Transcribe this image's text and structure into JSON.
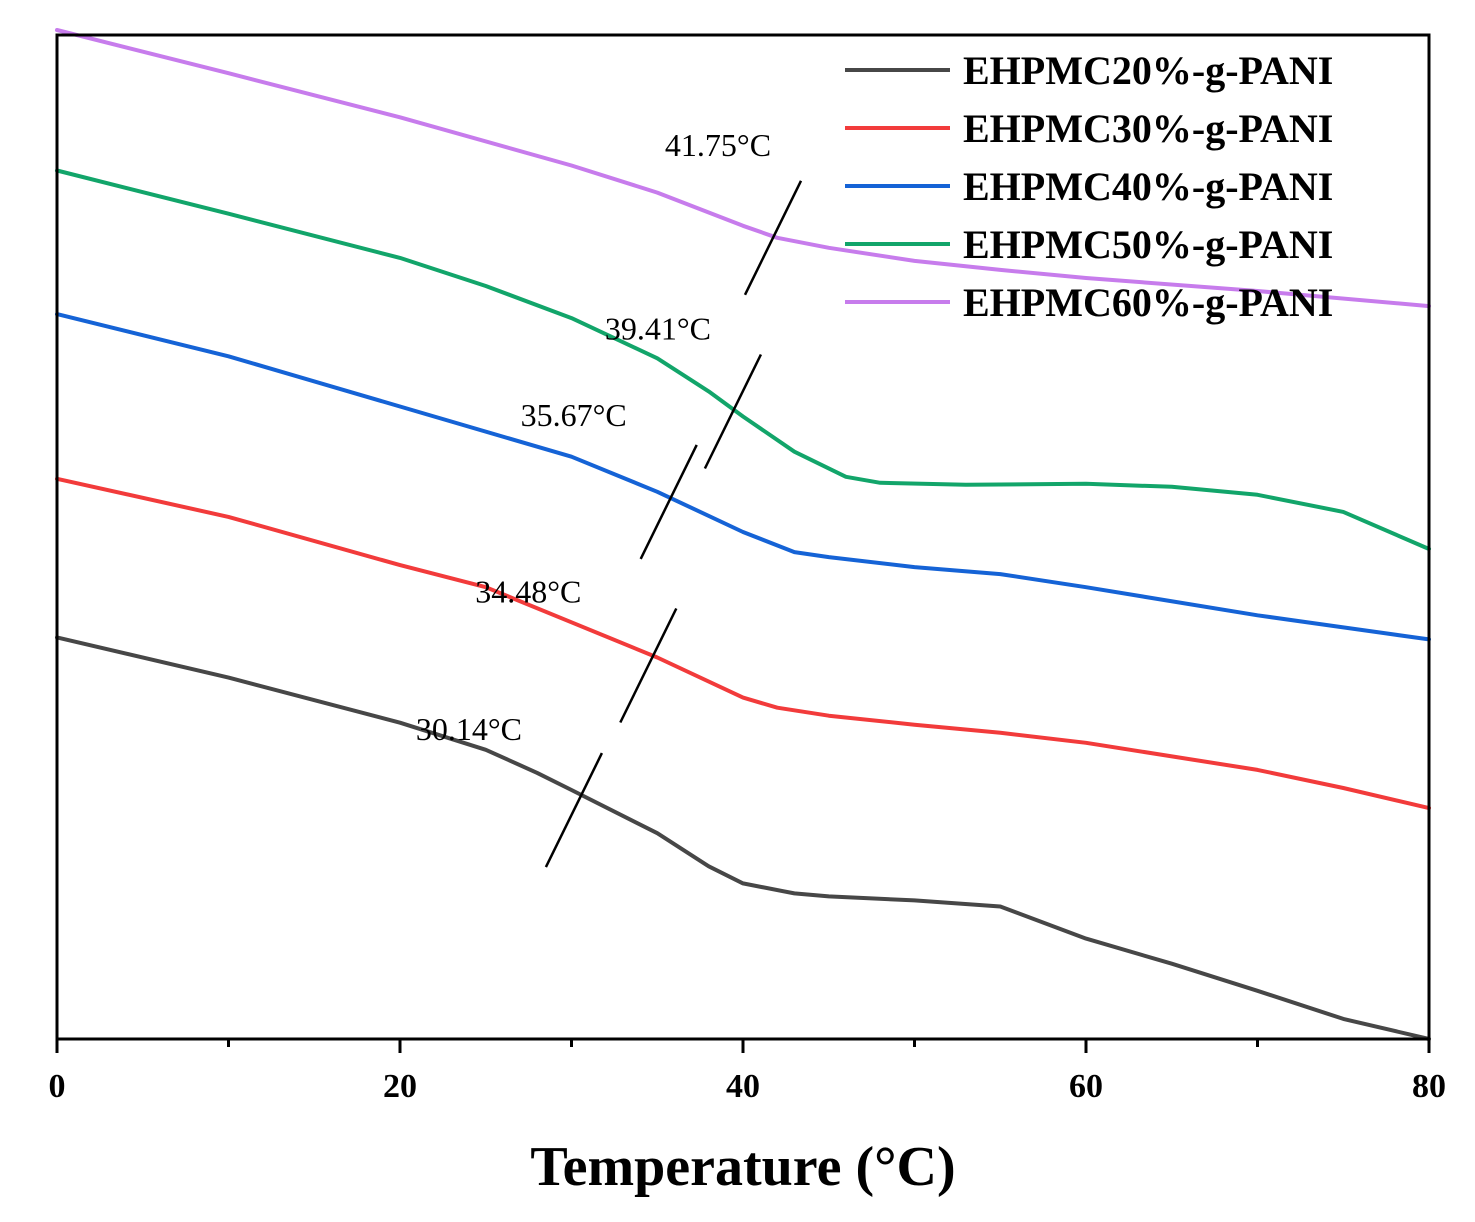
{
  "chart_data": {
    "type": "line",
    "title": "",
    "xlabel": "Temperature (°C)",
    "ylabel": "",
    "xlim": [
      0,
      80
    ],
    "ylim": [
      0,
      10
    ],
    "x_ticks": [
      "0",
      "20",
      "40",
      "60",
      "80"
    ],
    "legend_position": "top-right",
    "series": [
      {
        "name": "EHPMC60%-g-PANI",
        "color": "#c77cec",
        "points": [
          [
            0,
            10.05
          ],
          [
            10,
            9.62
          ],
          [
            20,
            9.18
          ],
          [
            30,
            8.7
          ],
          [
            35,
            8.43
          ],
          [
            40,
            8.1
          ],
          [
            42,
            7.98
          ],
          [
            45,
            7.88
          ],
          [
            50,
            7.75
          ],
          [
            55,
            7.66
          ],
          [
            60,
            7.58
          ],
          [
            70,
            7.45
          ],
          [
            80,
            7.3
          ]
        ]
      },
      {
        "name": "EHPMC50%-g-PANI",
        "color": "#12a56a",
        "points": [
          [
            0,
            8.65
          ],
          [
            10,
            8.22
          ],
          [
            20,
            7.78
          ],
          [
            25,
            7.5
          ],
          [
            30,
            7.18
          ],
          [
            35,
            6.78
          ],
          [
            38,
            6.45
          ],
          [
            40,
            6.2
          ],
          [
            43,
            5.85
          ],
          [
            46,
            5.6
          ],
          [
            48,
            5.54
          ],
          [
            53,
            5.52
          ],
          [
            60,
            5.53
          ],
          [
            65,
            5.5
          ],
          [
            70,
            5.42
          ],
          [
            75,
            5.25
          ],
          [
            80,
            4.88
          ]
        ]
      },
      {
        "name": "EHPMC40%-g-PANI",
        "color": "#1563d6",
        "points": [
          [
            0,
            7.22
          ],
          [
            10,
            6.8
          ],
          [
            20,
            6.3
          ],
          [
            30,
            5.8
          ],
          [
            35,
            5.45
          ],
          [
            40,
            5.05
          ],
          [
            43,
            4.85
          ],
          [
            45,
            4.8
          ],
          [
            50,
            4.7
          ],
          [
            55,
            4.63
          ],
          [
            60,
            4.5
          ],
          [
            70,
            4.22
          ],
          [
            75,
            4.1
          ],
          [
            80,
            3.98
          ]
        ]
      },
      {
        "name": "EHPMC30%-g-PANI",
        "color": "#f23b3b",
        "points": [
          [
            0,
            5.58
          ],
          [
            10,
            5.2
          ],
          [
            20,
            4.72
          ],
          [
            25,
            4.5
          ],
          [
            30,
            4.15
          ],
          [
            35,
            3.8
          ],
          [
            40,
            3.4
          ],
          [
            42,
            3.3
          ],
          [
            45,
            3.22
          ],
          [
            50,
            3.13
          ],
          [
            55,
            3.05
          ],
          [
            60,
            2.95
          ],
          [
            70,
            2.68
          ],
          [
            75,
            2.5
          ],
          [
            80,
            2.3
          ]
        ]
      },
      {
        "name": "EHPMC20%-g-PANI",
        "color": "#474747",
        "points": [
          [
            0,
            4.0
          ],
          [
            10,
            3.6
          ],
          [
            20,
            3.15
          ],
          [
            25,
            2.88
          ],
          [
            28,
            2.65
          ],
          [
            30,
            2.48
          ],
          [
            35,
            2.05
          ],
          [
            38,
            1.72
          ],
          [
            40,
            1.55
          ],
          [
            43,
            1.45
          ],
          [
            45,
            1.42
          ],
          [
            50,
            1.38
          ],
          [
            55,
            1.32
          ],
          [
            60,
            1.0
          ],
          [
            65,
            0.75
          ],
          [
            70,
            0.48
          ],
          [
            75,
            0.2
          ],
          [
            80,
            0.0
          ]
        ]
      }
    ],
    "annotations": [
      {
        "text": "41.75°C",
        "x": 41.75,
        "y": 7.98
      },
      {
        "text": "39.41°C",
        "x": 39.41,
        "y": 6.25
      },
      {
        "text": "35.67°C",
        "x": 35.67,
        "y": 5.35
      },
      {
        "text": "34.48°C",
        "x": 34.48,
        "y": 3.72
      },
      {
        "text": "30.14°C",
        "x": 30.14,
        "y": 2.28
      }
    ]
  }
}
